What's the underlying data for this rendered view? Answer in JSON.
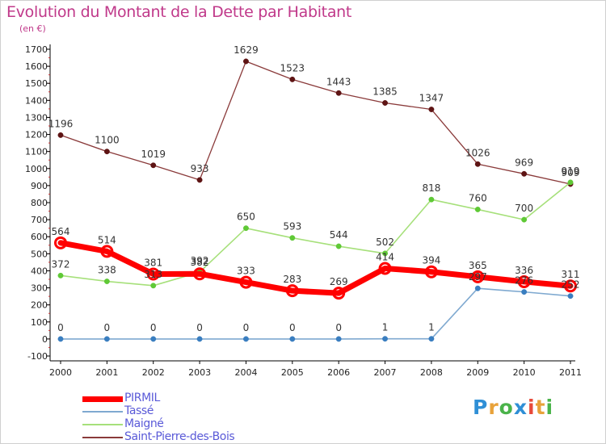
{
  "header": {
    "title": "Evolution du Montant de la Dette par Habitant",
    "subtitle": "(en €)"
  },
  "logo": {
    "letters": [
      "P",
      "r",
      "o",
      "x",
      "i",
      "t",
      "i"
    ],
    "colors": [
      "#2f8fd6",
      "#e8a23a",
      "#4ab34a",
      "#2f8fd6",
      "#e84a3a",
      "#e8a23a",
      "#4ab34a"
    ]
  },
  "chart_data": {
    "type": "line",
    "title": "Evolution du Montant de la Dette par Habitant",
    "subtitle": "(en €)",
    "xlabel": "",
    "ylabel": "",
    "ylim": [
      -100,
      1700
    ],
    "ytick_step": 100,
    "grid": false,
    "legend_position": "bottom-left",
    "categories": [
      "2000",
      "2001",
      "2002",
      "2003",
      "2004",
      "2005",
      "2006",
      "2007",
      "2008",
      "2009",
      "2010",
      "2011"
    ],
    "series": [
      {
        "name": "Saint-Pierre-des-Bois",
        "color": "#8a3a3a",
        "dot": "#5e1414",
        "width": 1.3,
        "values": [
          1196,
          1100,
          1019,
          933,
          1629,
          1523,
          1443,
          1385,
          1347,
          1026,
          969,
          909
        ],
        "labels": [
          "1196",
          "1100",
          "1019",
          "933",
          "1629",
          "1523",
          "1443",
          "1385",
          "1347",
          "1026",
          "969",
          "909"
        ]
      },
      {
        "name": "Maigné",
        "color": "#a6e07a",
        "dot": "#5fc936",
        "width": 1.6,
        "values": [
          372,
          338,
          313,
          392,
          650,
          593,
          544,
          502,
          818,
          760,
          700,
          919
        ],
        "labels": [
          "372",
          "338",
          "313",
          "392",
          "650",
          "593",
          "544",
          "502",
          "818",
          "760",
          "700",
          "919"
        ]
      },
      {
        "name": "Tassé",
        "color": "#7fa9d0",
        "dot": "#3a7ec0",
        "width": 1.6,
        "values": [
          0,
          0,
          0,
          0,
          0,
          0,
          0,
          1,
          1,
          297,
          276,
          252
        ],
        "labels": [
          "0",
          "0",
          "0",
          "0",
          "0",
          "0",
          "0",
          "1",
          "1",
          "297",
          "276",
          "252"
        ]
      },
      {
        "name": "PIRMIL",
        "color": "#ff0000",
        "dot": "#ff0000",
        "width": 7,
        "values": [
          564,
          514,
          381,
          382,
          333,
          283,
          269,
          414,
          394,
          365,
          336,
          311
        ],
        "labels": [
          "564",
          "514",
          "381",
          "382",
          "333",
          "283",
          "269",
          "414",
          "394",
          "365",
          "336",
          "311"
        ]
      }
    ],
    "legend_order": [
      "PIRMIL",
      "Tassé",
      "Maigné",
      "Saint-Pierre-des-Bois"
    ]
  }
}
